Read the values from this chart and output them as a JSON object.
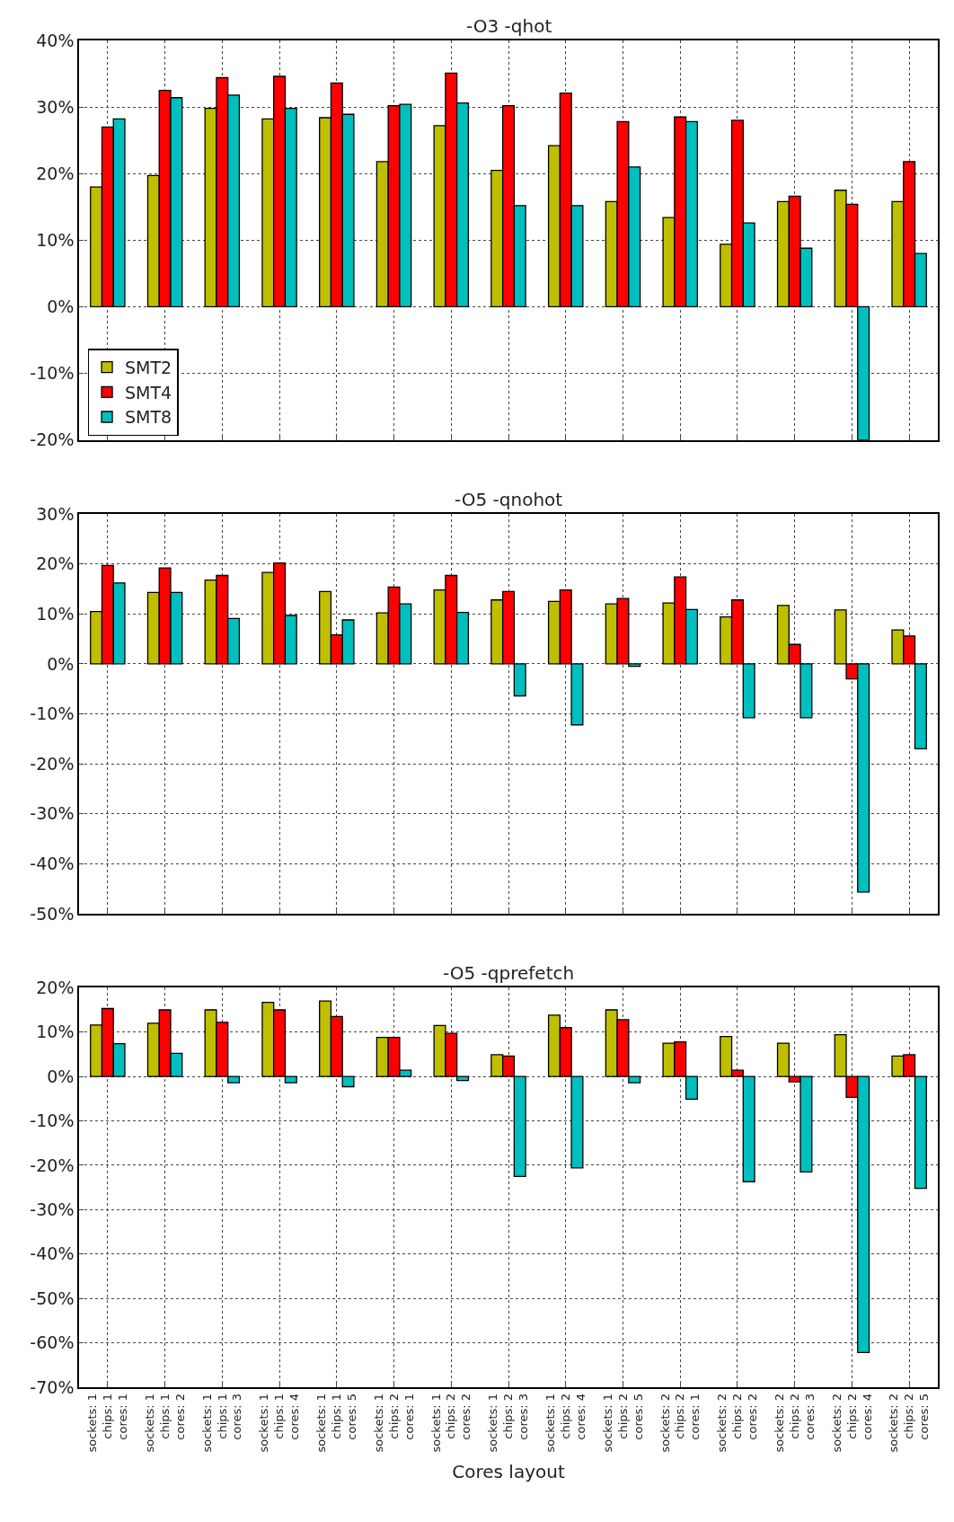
{
  "chart_data": [
    {
      "type": "bar",
      "title": "-O3 -qhot",
      "categories": [
        null,
        null,
        null,
        null,
        null,
        null,
        null,
        null,
        null,
        null,
        null,
        null,
        null,
        null,
        null
      ],
      "series": [
        {
          "name": "SMT2",
          "color": "#bfbf00",
          "values": [
            18,
            19.7,
            29.8,
            28.2,
            28.4,
            21.8,
            27.2,
            20.5,
            24.2,
            15.8,
            13.4,
            9.4,
            15.8,
            17.5,
            15.8
          ]
        },
        {
          "name": "SMT4",
          "color": "#ff0000",
          "values": [
            27,
            32.5,
            34.4,
            34.6,
            33.6,
            30.2,
            35.1,
            30.2,
            32.1,
            27.8,
            28.5,
            28,
            16.6,
            15.4,
            21.8
          ]
        },
        {
          "name": "SMT8",
          "color": "#00bfbf",
          "values": [
            28.2,
            31.4,
            31.8,
            29.8,
            28.9,
            30.4,
            30.6,
            15.2,
            15.2,
            21,
            27.8,
            12.6,
            8.8,
            -20,
            8
          ]
        }
      ],
      "ylim": [
        -20,
        40
      ],
      "yticks": [
        {
          "value": -20,
          "label": "-20%"
        },
        {
          "value": -10,
          "label": "-10%"
        },
        {
          "value": 0,
          "label": "0%"
        },
        {
          "value": 10,
          "label": "10%"
        },
        {
          "value": 20,
          "label": "20%"
        },
        {
          "value": 30,
          "label": "30%"
        },
        {
          "value": 40,
          "label": "40%"
        }
      ],
      "grid": true,
      "legend": "bottom left",
      "tick_labels": "y"
    },
    {
      "type": "bar",
      "title": "-O5 -qnohot",
      "categories": [
        null,
        null,
        null,
        null,
        null,
        null,
        null,
        null,
        null,
        null,
        null,
        null,
        null,
        null,
        null
      ],
      "series": [
        {
          "color": "#bfbf00",
          "values": [
            10.5,
            14.3,
            16.8,
            18.3,
            14.5,
            10.2,
            14.8,
            12.8,
            12.5,
            12,
            12.2,
            9.4,
            11.7,
            10.8,
            6.8
          ]
        },
        {
          "color": "#ff0000",
          "values": [
            19.7,
            19.2,
            17.7,
            20.2,
            5.8,
            15.4,
            17.7,
            14.5,
            14.8,
            13.1,
            17.4,
            12.8,
            3.9,
            -3,
            5.6
          ]
        },
        {
          "color": "#00bfbf",
          "values": [
            16.2,
            14.3,
            9.1,
            9.7,
            8.8,
            12,
            10.3,
            -6.4,
            -12.2,
            -0.5,
            10.9,
            -10.8,
            -10.8,
            -45.7,
            -17
          ]
        }
      ],
      "ylim": [
        -50,
        30
      ],
      "yticks": [
        {
          "value": -50,
          "label": "-50%"
        },
        {
          "value": -40,
          "label": "-40%"
        },
        {
          "value": -30,
          "label": "-30%"
        },
        {
          "value": -20,
          "label": "-20%"
        },
        {
          "value": -10,
          "label": "-10%"
        },
        {
          "value": 0,
          "label": "0%"
        },
        {
          "value": 10,
          "label": "10%"
        },
        {
          "value": 20,
          "label": "20%"
        },
        {
          "value": 30,
          "label": "30%"
        }
      ],
      "grid": true,
      "tick_labels": "y"
    },
    {
      "type": "bar",
      "title": "-O5 -qprefetch",
      "xlabel": "Cores layout",
      "categories": [
        "sockets: 1\nchips: 1\ncores: 1",
        "sockets: 1\nchips: 1\ncores: 2",
        "sockets: 1\nchips: 1\ncores: 3",
        "sockets: 1\nchips: 1\ncores: 4",
        "sockets: 1\nchips: 1\ncores: 5",
        "sockets: 1\nchips: 2\ncores: 1",
        "sockets: 1\nchips: 2\ncores: 2",
        "sockets: 1\nchips: 2\ncores: 3",
        "sockets: 1\nchips: 2\ncores: 4",
        "sockets: 1\nchips: 2\ncores: 5",
        "sockets: 2\nchips: 2\ncores: 1",
        "sockets: 2\nchips: 2\ncores: 2",
        "sockets: 2\nchips: 2\ncores: 3",
        "sockets: 2\nchips: 2\ncores: 4",
        "sockets: 2\nchips: 2\ncores: 5"
      ],
      "series": [
        {
          "color": "#bfbf00",
          "values": [
            11.6,
            12,
            15,
            16.7,
            17,
            8.8,
            11.5,
            4.9,
            13.8,
            15,
            7.5,
            9,
            7.5,
            9.4,
            4.6
          ]
        },
        {
          "color": "#ff0000",
          "values": [
            15.3,
            15,
            12.2,
            15,
            13.5,
            8.8,
            9.7,
            4.6,
            11,
            12.8,
            7.8,
            1.4,
            -1.2,
            -4.7,
            4.9
          ]
        },
        {
          "color": "#00bfbf",
          "values": [
            7.4,
            5.2,
            -1.4,
            -1.4,
            -2.3,
            1.4,
            -0.9,
            -22.5,
            -20.6,
            -1.4,
            -5.1,
            -23.7,
            -21.5,
            -62.2,
            -25.2
          ]
        }
      ],
      "ylim": [
        -70,
        20
      ],
      "yticks": [
        {
          "value": -70,
          "label": "-70%"
        },
        {
          "value": -60,
          "label": "-60%"
        },
        {
          "value": -50,
          "label": "-50%"
        },
        {
          "value": -40,
          "label": "-40%"
        },
        {
          "value": -30,
          "label": "-30%"
        },
        {
          "value": -20,
          "label": "-20%"
        },
        {
          "value": -10,
          "label": "-10%"
        },
        {
          "value": 0,
          "label": "0%"
        },
        {
          "value": 10,
          "label": "10%"
        },
        {
          "value": 20,
          "label": "20%"
        }
      ],
      "grid": true
    }
  ]
}
